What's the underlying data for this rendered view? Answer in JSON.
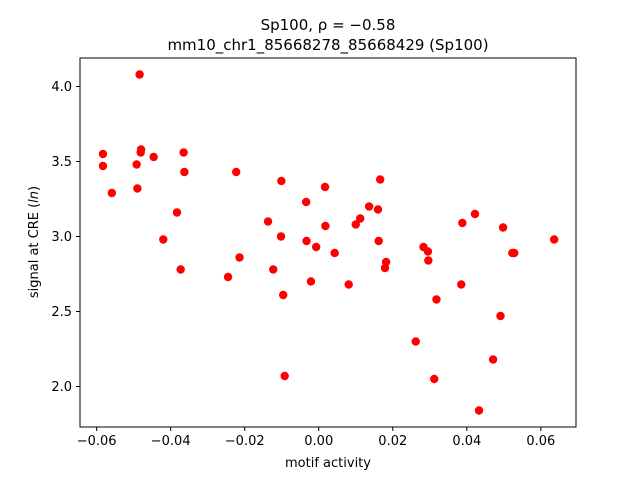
{
  "chart_data": {
    "type": "scatter",
    "title": "Sp100, ρ = −0.58",
    "subtitle": "mm10_chr1_85668278_85668429 (Sp100)",
    "xlabel": "motif activity",
    "ylabel": "signal at CRE (ln)",
    "xlim": [
      -0.0645,
      0.0695
    ],
    "ylim": [
      1.73,
      4.19
    ],
    "xticks": [
      -0.06,
      -0.04,
      -0.02,
      0.0,
      0.02,
      0.04,
      0.06
    ],
    "xtick_labels": [
      "−0.06",
      "−0.04",
      "−0.02",
      "0.00",
      "0.02",
      "0.04",
      "0.06"
    ],
    "yticks": [
      2.0,
      2.5,
      3.0,
      3.5,
      4.0
    ],
    "ytick_labels": [
      "2.0",
      "2.5",
      "3.0",
      "3.5",
      "4.0"
    ],
    "marker_color": "#ff0000",
    "grid": false,
    "points": [
      [
        -0.0583,
        3.55
      ],
      [
        -0.0583,
        3.47
      ],
      [
        -0.0559,
        3.29
      ],
      [
        -0.0492,
        3.48
      ],
      [
        -0.049,
        3.32
      ],
      [
        -0.0484,
        4.08
      ],
      [
        -0.0481,
        3.56
      ],
      [
        -0.048,
        3.58
      ],
      [
        -0.0446,
        3.53
      ],
      [
        -0.042,
        2.98
      ],
      [
        -0.0383,
        3.16
      ],
      [
        -0.0373,
        2.78
      ],
      [
        -0.0365,
        3.56
      ],
      [
        -0.0363,
        3.43
      ],
      [
        -0.0245,
        2.73
      ],
      [
        -0.0223,
        3.43
      ],
      [
        -0.0214,
        2.86
      ],
      [
        -0.0137,
        3.1
      ],
      [
        -0.0123,
        2.78
      ],
      [
        -0.0102,
        3.0
      ],
      [
        -0.0101,
        3.37
      ],
      [
        -0.0096,
        2.61
      ],
      [
        -0.0092,
        2.07
      ],
      [
        -0.0034,
        3.23
      ],
      [
        -0.0033,
        2.97
      ],
      [
        -0.0021,
        2.7
      ],
      [
        -0.0007,
        2.93
      ],
      [
        0.0017,
        3.33
      ],
      [
        0.0018,
        3.07
      ],
      [
        0.0043,
        2.89
      ],
      [
        0.0081,
        2.68
      ],
      [
        0.01,
        3.08
      ],
      [
        0.0112,
        3.12
      ],
      [
        0.0136,
        3.2
      ],
      [
        0.016,
        3.18
      ],
      [
        0.0162,
        2.97
      ],
      [
        0.0166,
        3.38
      ],
      [
        0.0179,
        2.79
      ],
      [
        0.0182,
        2.83
      ],
      [
        0.0262,
        2.3
      ],
      [
        0.0283,
        2.93
      ],
      [
        0.0295,
        2.9
      ],
      [
        0.0296,
        2.84
      ],
      [
        0.0312,
        2.05
      ],
      [
        0.0318,
        2.58
      ],
      [
        0.0385,
        2.68
      ],
      [
        0.0388,
        3.09
      ],
      [
        0.0422,
        3.15
      ],
      [
        0.0433,
        1.84
      ],
      [
        0.0471,
        2.18
      ],
      [
        0.0491,
        2.47
      ],
      [
        0.0498,
        3.06
      ],
      [
        0.0523,
        2.89
      ],
      [
        0.0528,
        2.89
      ],
      [
        0.0636,
        2.98
      ]
    ]
  }
}
